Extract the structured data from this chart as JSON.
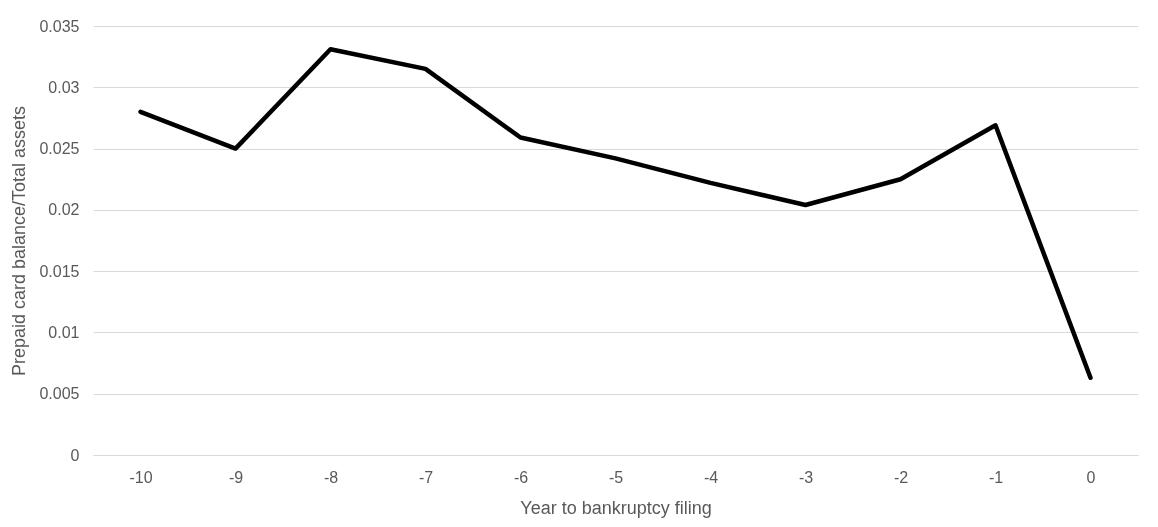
{
  "chart_data": {
    "type": "line",
    "xlabel": "Year to bankruptcy filing",
    "ylabel": "Prepaid card balance/Total assets",
    "categories": [
      "-10",
      "-9",
      "-8",
      "-7",
      "-6",
      "-5",
      "-4",
      "-3",
      "-2",
      "-1",
      "0"
    ],
    "series": [
      {
        "color": "#000000",
        "values": [
          0.028,
          0.025,
          0.0331,
          0.0315,
          0.0259,
          0.0242,
          0.0222,
          0.0204,
          0.0225,
          0.0269,
          0.0063
        ]
      }
    ],
    "ylim": [
      0,
      0.035
    ],
    "yticks": [
      0,
      0.005,
      0.01,
      0.015,
      0.02,
      0.025,
      0.03,
      0.035
    ],
    "grid": "y",
    "marker": "none",
    "line_style": "solid"
  }
}
